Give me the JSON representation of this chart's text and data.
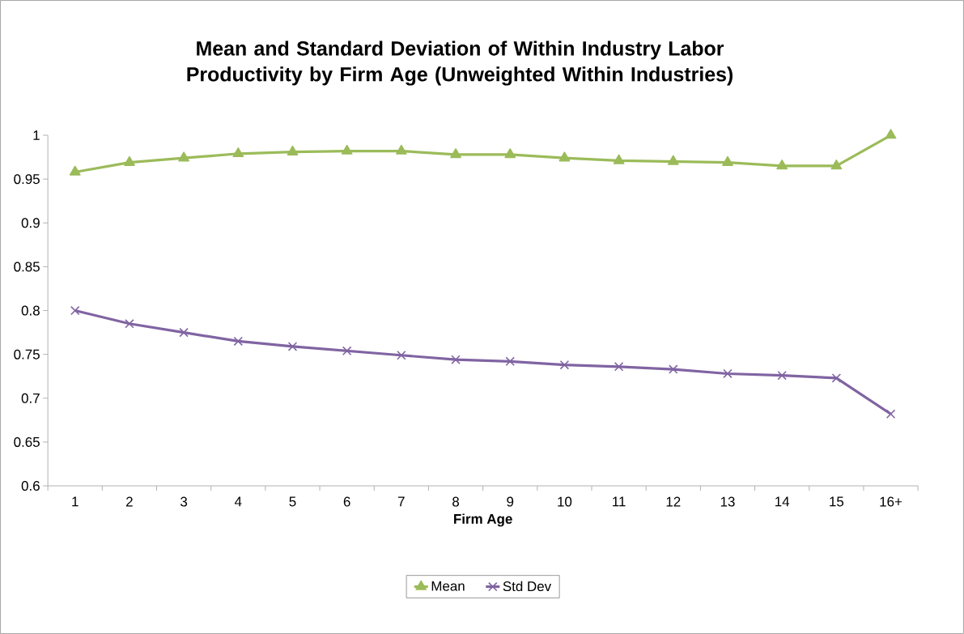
{
  "chart_data": {
    "type": "line",
    "title": "Mean and Standard Deviation of Within Industry Labor Productivity by Firm Age (Unweighted Within Industries)",
    "xlabel": "Firm Age",
    "categories": [
      "1",
      "2",
      "3",
      "4",
      "5",
      "6",
      "7",
      "8",
      "9",
      "10",
      "11",
      "12",
      "13",
      "14",
      "15",
      "16+"
    ],
    "series": [
      {
        "name": "Mean",
        "color": "#9bbb59",
        "marker": "triangle",
        "values": [
          0.958,
          0.969,
          0.974,
          0.979,
          0.981,
          0.982,
          0.982,
          0.978,
          0.978,
          0.974,
          0.971,
          0.97,
          0.969,
          0.965,
          0.965,
          1.0
        ]
      },
      {
        "name": "Std Dev",
        "color": "#8064a2",
        "marker": "cross",
        "values": [
          0.8,
          0.785,
          0.775,
          0.765,
          0.759,
          0.754,
          0.749,
          0.744,
          0.742,
          0.738,
          0.736,
          0.733,
          0.728,
          0.726,
          0.723,
          0.682
        ]
      }
    ],
    "ylim": [
      0.6,
      1
    ],
    "yticks": [
      0.6,
      0.65,
      0.7,
      0.75,
      0.8,
      0.85,
      0.9,
      0.95,
      1
    ],
    "grid": false,
    "legend": "bottom"
  }
}
